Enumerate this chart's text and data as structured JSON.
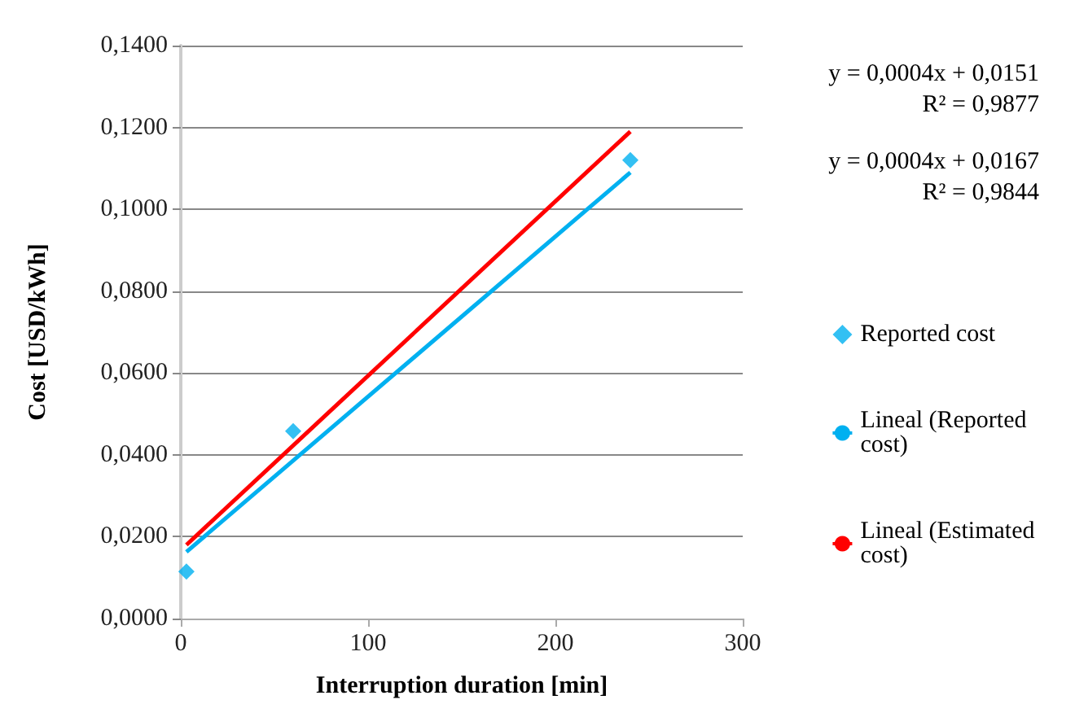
{
  "chart_data": {
    "type": "scatter",
    "xlabel": "Interruption duration [min]",
    "ylabel": "Cost [USD/kWh]",
    "xlim": [
      0,
      300
    ],
    "xticks": [
      0,
      100,
      200,
      300
    ],
    "ylim": [
      0,
      0.14
    ],
    "yticks": [
      {
        "value": 0,
        "label": "0,0000"
      },
      {
        "value": 0.02,
        "label": "0,0200"
      },
      {
        "value": 0.04,
        "label": "0,0400"
      },
      {
        "value": 0.06,
        "label": "0,0600"
      },
      {
        "value": 0.08,
        "label": "0,0800"
      },
      {
        "value": 0.1,
        "label": "0,1000"
      },
      {
        "value": 0.12,
        "label": "0,1200"
      },
      {
        "value": 0.14,
        "label": "0,1400"
      }
    ],
    "grid": "y",
    "legend": "right",
    "series": [
      {
        "name": "Reported cost",
        "marker": "diamond",
        "color": "#00b0f0",
        "x": [
          3,
          60,
          240
        ],
        "values": [
          0.0115,
          0.0458,
          0.112
        ]
      },
      {
        "name": "Lineal (Reported cost)",
        "type": "line",
        "marker": "none",
        "color": "#00b0f0",
        "x": [
          3,
          240
        ],
        "values": [
          0.0163,
          0.109
        ]
      },
      {
        "name": "Lineal (Estimated cost)",
        "type": "line",
        "marker": "none",
        "color": "#ff0000",
        "x": [
          3,
          240
        ],
        "values": [
          0.018,
          0.119
        ]
      }
    ],
    "annotations": [
      "y = 0,0004x + 0,0151",
      "R² = 0,9877",
      "y = 0,0004x + 0,0167",
      "R² = 0,9844"
    ]
  }
}
